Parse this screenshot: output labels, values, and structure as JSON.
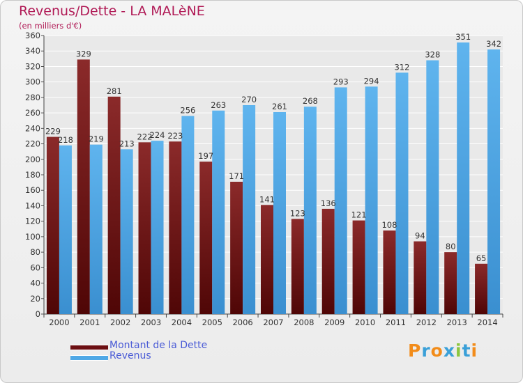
{
  "title": "Revenus/Dette - LA MALèNE",
  "subtitle": "(en milliers d'€)",
  "colors": {
    "title": "#b01955",
    "dette": "#7a1a1a",
    "revenus": "#4fa8e6",
    "legend_text": "#4a5bd6",
    "grid": "#ffffff",
    "background": "#eeeeee"
  },
  "legend": [
    {
      "label": "Montant de la Dette",
      "color": "#6b0f12"
    },
    {
      "label": "Revenus",
      "color": "#4fa8e6"
    }
  ],
  "logo": {
    "text": "Proxiti",
    "letters": [
      "P",
      "r",
      "o",
      "x",
      "i",
      "t",
      "i"
    ],
    "colors": [
      "#f28c1a",
      "#3aa0d8",
      "#f28c1a",
      "#3aa0d8",
      "#8cc63f",
      "#3aa0d8",
      "#f28c1a"
    ]
  },
  "chart_data": {
    "type": "bar",
    "title": "Revenus/Dette - LA MALèNE",
    "subtitle": "(en milliers d'€)",
    "categories": [
      "2000",
      "2001",
      "2002",
      "2003",
      "2004",
      "2005",
      "2006",
      "2007",
      "2008",
      "2009",
      "2010",
      "2011",
      "2012",
      "2013",
      "2014"
    ],
    "series": [
      {
        "name": "Montant de la Dette",
        "values": [
          229,
          329,
          281,
          222,
          223,
          197,
          171,
          141,
          123,
          136,
          121,
          108,
          94,
          80,
          65
        ]
      },
      {
        "name": "Revenus",
        "values": [
          218,
          219,
          213,
          224,
          256,
          263,
          270,
          261,
          268,
          293,
          294,
          312,
          328,
          351,
          342
        ]
      }
    ],
    "ylim": [
      0,
      360
    ],
    "yticks": [
      0,
      20,
      40,
      60,
      80,
      100,
      120,
      140,
      160,
      180,
      200,
      220,
      240,
      260,
      280,
      300,
      320,
      340,
      360
    ],
    "grid": true,
    "legend_position": "bottom-left",
    "data_labels": true
  }
}
